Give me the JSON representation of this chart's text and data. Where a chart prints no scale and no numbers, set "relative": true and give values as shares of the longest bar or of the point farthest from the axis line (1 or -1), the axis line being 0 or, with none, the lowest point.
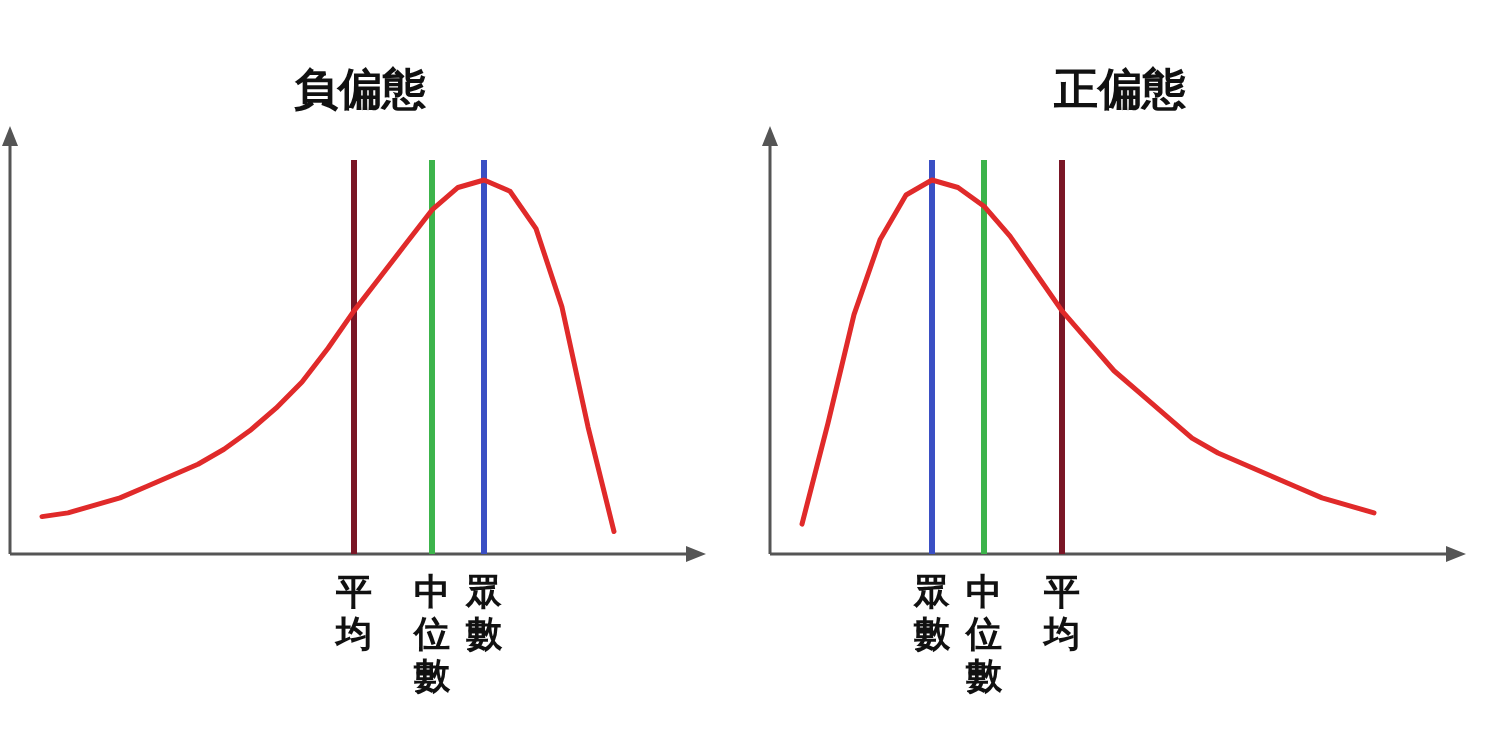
{
  "chart_data": [
    {
      "type": "line",
      "title": "負偏態",
      "relative": true,
      "categories": [
        null,
        null,
        null,
        null,
        null,
        null,
        null,
        null,
        null,
        null,
        null,
        null,
        "平均",
        null,
        null,
        "中位數",
        null,
        "眾數",
        null,
        null,
        null,
        null,
        null
      ],
      "series": [
        {
          "color": "#e02a2a",
          "values": [
            0.1,
            0.11,
            0.13,
            0.15,
            0.18,
            0.21,
            0.24,
            0.28,
            0.33,
            0.39,
            0.46,
            0.55,
            0.65,
            0.74,
            0.83,
            0.92,
            0.98,
            1,
            0.97,
            0.87,
            0.66,
            0.34,
            0.06
          ]
        }
      ],
      "ref_lines": [
        {
          "axis": "x",
          "value": "平均",
          "color": "#7a1626"
        },
        {
          "axis": "x",
          "value": "中位數",
          "color": "#3cb44b"
        },
        {
          "axis": "x",
          "value": "眾數",
          "color": "#3a4fc4"
        }
      ]
    },
    {
      "type": "line",
      "title": "正偏態",
      "relative": true,
      "categories": [
        null,
        null,
        null,
        null,
        null,
        "眾數",
        null,
        "中位數",
        null,
        null,
        "平均",
        null,
        null,
        null,
        null,
        null,
        null,
        null,
        null,
        null,
        null,
        null,
        null
      ],
      "series": [
        {
          "color": "#e02a2a",
          "values": [
            0.08,
            0.35,
            0.64,
            0.84,
            0.96,
            1,
            0.98,
            0.93,
            0.85,
            0.75,
            0.65,
            0.57,
            0.49,
            0.43,
            0.37,
            0.31,
            0.27,
            0.24,
            0.21,
            0.18,
            0.15,
            0.13,
            0.11
          ]
        }
      ],
      "ref_lines": [
        {
          "axis": "x",
          "value": "眾數",
          "color": "#3a4fc4"
        },
        {
          "axis": "x",
          "value": "中位數",
          "color": "#3cb44b"
        },
        {
          "axis": "x",
          "value": "平均",
          "color": "#7a1626"
        }
      ]
    }
  ]
}
